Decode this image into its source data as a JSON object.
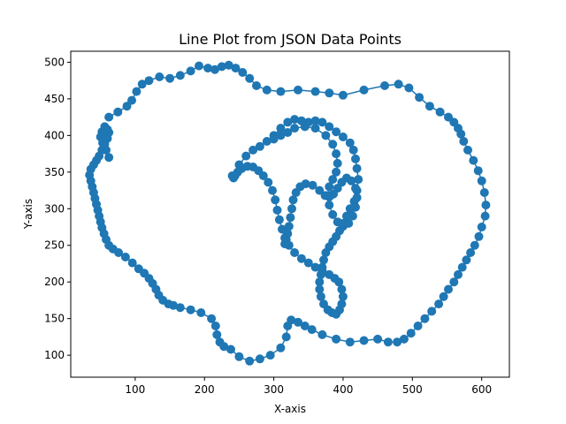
{
  "chart_data": {
    "type": "line",
    "title": "Line Plot from JSON Data Points",
    "xlabel": "X-axis",
    "ylabel": "Y-axis",
    "xlim": [
      7,
      640
    ],
    "ylim": [
      70,
      515
    ],
    "xticks": [
      100,
      200,
      300,
      400,
      500,
      600
    ],
    "yticks": [
      100,
      150,
      200,
      250,
      300,
      350,
      400,
      450,
      500
    ],
    "grid": false,
    "line_color": "#1f77b4",
    "marker": "circle",
    "series": [
      {
        "x": [
          62,
          75,
          88,
          95,
          102,
          110,
          120,
          135,
          150,
          165,
          180,
          192,
          205,
          215,
          225,
          235,
          245,
          255,
          265,
          275,
          290,
          310,
          335,
          360,
          380,
          400,
          430,
          460,
          480,
          495,
          510,
          525,
          540,
          552,
          560,
          566,
          570,
          574,
          580,
          588,
          595,
          600,
          604,
          606,
          605,
          600,
          596,
          590,
          584,
          578,
          572,
          566,
          560,
          552,
          545,
          538,
          528,
          518,
          508,
          498,
          488,
          478,
          465,
          450,
          430,
          410,
          390,
          370,
          355,
          345,
          335,
          325,
          320,
          318,
          310,
          295,
          280,
          265,
          250,
          238,
          228,
          222,
          218,
          216,
          210,
          195,
          180,
          165,
          155,
          148,
          140,
          134,
          130,
          125,
          120,
          113,
          105,
          96,
          86,
          76,
          68,
          62,
          58,
          55,
          52,
          50,
          48,
          46,
          44,
          42,
          40,
          38,
          36,
          34,
          36,
          40,
          44,
          48,
          52,
          56,
          60,
          62,
          60,
          56,
          52,
          50,
          53,
          58,
          62
        ],
        "y": [
          425,
          432,
          440,
          448,
          460,
          470,
          475,
          480,
          478,
          482,
          488,
          495,
          492,
          490,
          494,
          496,
          492,
          486,
          478,
          468,
          462,
          460,
          462,
          460,
          458,
          455,
          462,
          468,
          470,
          465,
          452,
          440,
          432,
          425,
          418,
          410,
          402,
          392,
          380,
          366,
          352,
          338,
          322,
          305,
          290,
          275,
          262,
          250,
          240,
          230,
          220,
          210,
          200,
          190,
          180,
          170,
          160,
          150,
          140,
          130,
          122,
          118,
          118,
          122,
          120,
          118,
          122,
          128,
          135,
          140,
          145,
          148,
          140,
          125,
          110,
          100,
          95,
          92,
          98,
          108,
          112,
          118,
          128,
          140,
          150,
          158,
          162,
          165,
          168,
          170,
          175,
          182,
          190,
          198,
          205,
          212,
          218,
          226,
          234,
          240,
          245,
          250,
          258,
          266,
          274,
          282,
          290,
          298,
          306,
          314,
          322,
          330,
          338,
          346,
          354,
          360,
          366,
          372,
          380,
          388,
          396,
          404,
          408,
          412,
          405,
          398,
          390,
          380,
          370
        ]
      },
      {
        "x": [
          240,
          250,
          260,
          270,
          280,
          290,
          300,
          310,
          320,
          330,
          340,
          350,
          360,
          370,
          380,
          390,
          400,
          410,
          415,
          418,
          420,
          422,
          420,
          416,
          410,
          405,
          400,
          395,
          390,
          385,
          380,
          375,
          372,
          370,
          368,
          366,
          366,
          368,
          372,
          378,
          384,
          390,
          395,
          398,
          400,
          398,
          394,
          388,
          380,
          370,
          360,
          350,
          340,
          330,
          322,
          316,
          312,
          308,
          305,
          302,
          298,
          292,
          285,
          278,
          270,
          262,
          254,
          248,
          244,
          242
        ],
        "y": [
          345,
          360,
          372,
          380,
          385,
          392,
          400,
          410,
          418,
          422,
          420,
          418,
          420,
          418,
          412,
          405,
          398,
          390,
          380,
          368,
          355,
          340,
          325,
          310,
          300,
          290,
          280,
          270,
          262,
          255,
          248,
          240,
          230,
          220,
          210,
          200,
          190,
          180,
          170,
          162,
          158,
          156,
          162,
          170,
          180,
          190,
          200,
          205,
          210,
          215,
          220,
          226,
          232,
          240,
          250,
          260,
          272,
          285,
          298,
          312,
          325,
          336,
          345,
          352,
          357,
          358,
          355,
          350,
          345,
          342
        ]
      },
      {
        "x": [
          300,
          310,
          320,
          330,
          345,
          360,
          375,
          385,
          390,
          392,
          390,
          385,
          380,
          378,
          380,
          385,
          392,
          400,
          408,
          414,
          418,
          420,
          418,
          412,
          405,
          398,
          392,
          386,
          380,
          374,
          366,
          356,
          346,
          338,
          332,
          328,
          326,
          324,
          322,
          320,
          318,
          316
        ],
        "y": [
          395,
          400,
          404,
          410,
          412,
          410,
          400,
          388,
          375,
          362,
          350,
          340,
          330,
          318,
          305,
          292,
          282,
          276,
          280,
          290,
          302,
          315,
          328,
          338,
          342,
          336,
          328,
          320,
          316,
          318,
          325,
          332,
          334,
          330,
          322,
          312,
          300,
          288,
          276,
          266,
          258,
          252
        ]
      }
    ]
  }
}
